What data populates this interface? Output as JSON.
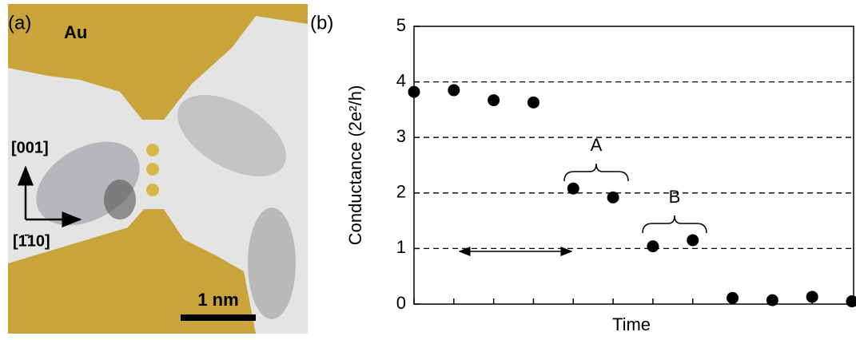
{
  "panel_a": {
    "label": "(a)",
    "material": "Au",
    "direction_vertical": "[001]",
    "direction_horizontal": "[1̄10]",
    "scale_bar": "1 nm"
  },
  "chart_data": {
    "type": "scatter",
    "panel_label": "(b)",
    "y_label": "Conductance (2e²/h)",
    "x_label": "Time",
    "categories": [
      null,
      null,
      null,
      null,
      null,
      null,
      null,
      null,
      null,
      null,
      null,
      null
    ],
    "values": [
      3.82,
      3.85,
      3.67,
      3.63,
      2.08,
      1.92,
      1.04,
      1.15,
      0.11,
      0.07,
      0.13,
      0.05
    ],
    "color": "#000000",
    "annotations": [
      "A",
      "B"
    ],
    "ylim": [
      0,
      5
    ],
    "yticks": [
      0,
      1,
      2,
      3,
      4,
      5
    ],
    "grid": true
  }
}
